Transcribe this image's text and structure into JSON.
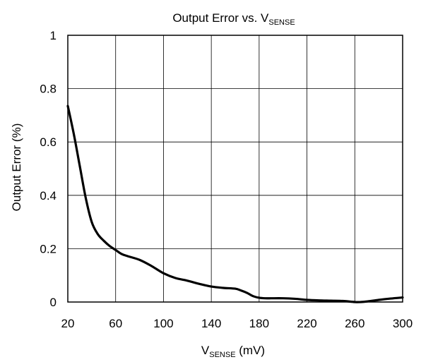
{
  "chart_data": {
    "type": "line",
    "title": {
      "main": "Output Error vs. V",
      "sub": "SENSE"
    },
    "xlabel": {
      "main": "V",
      "sub": "SENSE",
      "suffix": " (mV)"
    },
    "ylabel": "Output Error (%)",
    "xlim": [
      20,
      300
    ],
    "ylim": [
      0,
      1
    ],
    "xticks": [
      20,
      60,
      100,
      140,
      180,
      220,
      260,
      300
    ],
    "yticks": [
      0,
      0.2,
      0.4,
      0.6,
      0.8,
      1
    ],
    "ytick_labels": [
      "0",
      "0.2",
      "0.4",
      "0.6",
      "0.8",
      "1"
    ],
    "grid": true,
    "colors": {
      "line": "#000000",
      "grid": "#000000",
      "frame": "#000000"
    },
    "series": [
      {
        "x": [
          20,
          25,
          30,
          35,
          40,
          45,
          50,
          55,
          60,
          65,
          70,
          80,
          90,
          100,
          110,
          120,
          130,
          140,
          150,
          160,
          165,
          170,
          175,
          180,
          185,
          190,
          200,
          210,
          220,
          230,
          240,
          250,
          260,
          265,
          270,
          280,
          290,
          300
        ],
        "values": [
          0.735,
          0.63,
          0.51,
          0.39,
          0.3,
          0.255,
          0.23,
          0.21,
          0.195,
          0.18,
          0.172,
          0.158,
          0.135,
          0.108,
          0.09,
          0.08,
          0.068,
          0.058,
          0.053,
          0.05,
          0.043,
          0.034,
          0.022,
          0.016,
          0.014,
          0.014,
          0.014,
          0.012,
          0.008,
          0.006,
          0.005,
          0.004,
          0.0,
          0.0,
          0.002,
          0.008,
          0.013,
          0.017
        ]
      }
    ]
  }
}
